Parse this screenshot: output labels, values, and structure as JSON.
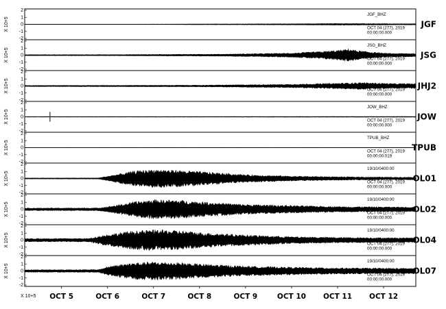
{
  "chart_data": {
    "type": "line",
    "y_scale_label": "X 10+5",
    "x_scale_label": "X 10+5",
    "x_ticks": [
      "OCT 5",
      "OCT 6",
      "OCT 7",
      "OCT 8",
      "OCT 9",
      "OCT 10",
      "OCT 11",
      "OCT 12"
    ],
    "y_ticks": [
      "-2",
      "-1",
      "0",
      "1",
      "2"
    ],
    "ylim": [
      -2,
      2
    ],
    "panels": [
      {
        "station": "JGF",
        "component": "JGF_BHZ",
        "date": "OCT 04 (277), 2019",
        "time": "00:00:00.000",
        "note": "",
        "envelope": [
          [
            0,
            0.02
          ],
          [
            6.5,
            0.02
          ],
          [
            8,
            0.05
          ],
          [
            10,
            0.08
          ],
          [
            11,
            0.12
          ],
          [
            12,
            0.1
          ],
          [
            12.2,
            0.08
          ]
        ]
      },
      {
        "station": "JSG",
        "component": "JSG_BHZ",
        "date": "OCT 04 (277), 2019",
        "time": "00:00:00.000",
        "note": "",
        "envelope": [
          [
            0,
            0.06
          ],
          [
            6,
            0.08
          ],
          [
            8.5,
            0.15
          ],
          [
            10,
            0.3
          ],
          [
            10.7,
            0.55
          ],
          [
            11.1,
            0.75
          ],
          [
            11.25,
            0.9
          ],
          [
            11.5,
            0.6
          ],
          [
            12,
            0.3
          ],
          [
            12.2,
            0.25
          ]
        ]
      },
      {
        "station": "JHJ2",
        "component": "",
        "date": "OCT 04 (277), 2019",
        "time": "00:00:00.000",
        "note": "",
        "envelope": [
          [
            0,
            0.05
          ],
          [
            4,
            0.08
          ],
          [
            6,
            0.1
          ],
          [
            8,
            0.12
          ],
          [
            10,
            0.25
          ],
          [
            11,
            0.4
          ],
          [
            11.5,
            0.5
          ],
          [
            12,
            0.4
          ],
          [
            12.2,
            0.35
          ]
        ]
      },
      {
        "station": "JOW",
        "component": "JOW_BHZ",
        "date": "OCT 04 (277), 2019",
        "time": "00:00:00.000",
        "note": "",
        "envelope": [
          [
            0,
            0.03
          ],
          [
            8,
            0.04
          ],
          [
            12.2,
            0.05
          ]
        ],
        "spikes": [
          [
            4.75,
            0.7
          ]
        ]
      },
      {
        "station": "TPUB",
        "component": "TPUB_BHZ",
        "date": "OCT 04 (277), 2019",
        "time": "00:00:00.019",
        "note": "",
        "envelope": [
          [
            0,
            0.01
          ],
          [
            12.2,
            0.02
          ]
        ]
      },
      {
        "station": "OL01",
        "component": "",
        "date": "OCT 04 (277), 2019",
        "time": "00:00:00.000",
        "note": "19/10/0400:00",
        "envelope": [
          [
            0,
            0.05
          ],
          [
            5.8,
            0.08
          ],
          [
            6.2,
            0.6
          ],
          [
            6.6,
            1.1
          ],
          [
            7,
            1.3
          ],
          [
            7.5,
            1.2
          ],
          [
            8,
            1.0
          ],
          [
            9,
            0.55
          ],
          [
            10,
            0.35
          ],
          [
            11,
            0.25
          ],
          [
            12.2,
            0.2
          ]
        ]
      },
      {
        "station": "OL02",
        "component": "",
        "date": "OCT 04 (277), 2019",
        "time": "00:00:00.000",
        "note": "19/10/0400:00",
        "envelope": [
          [
            0,
            0.15
          ],
          [
            5.8,
            0.2
          ],
          [
            6.2,
            0.6
          ],
          [
            6.6,
            1.1
          ],
          [
            7,
            1.4
          ],
          [
            7.6,
            1.3
          ],
          [
            8,
            1.1
          ],
          [
            9,
            0.7
          ],
          [
            10,
            0.55
          ],
          [
            11,
            0.4
          ],
          [
            12.2,
            0.35
          ]
        ]
      },
      {
        "station": "OL04",
        "component": "",
        "date": "OCT 04 (277), 2019",
        "time": "00:00:00.000",
        "note": "19/10/0400:00",
        "envelope": [
          [
            0,
            0.2
          ],
          [
            5.6,
            0.25
          ],
          [
            5.9,
            0.7
          ],
          [
            6.5,
            1.3
          ],
          [
            7,
            1.5
          ],
          [
            7.6,
            1.35
          ],
          [
            8,
            1.1
          ],
          [
            9,
            0.75
          ],
          [
            10,
            0.5
          ],
          [
            11,
            0.4
          ],
          [
            12.2,
            0.35
          ]
        ]
      },
      {
        "station": "OL07",
        "component": "",
        "date": "OCT 04 (277), 2019",
        "time": "00:00:00.000",
        "note": "19/10/0400:00",
        "envelope": [
          [
            0,
            0.15
          ],
          [
            5.8,
            0.2
          ],
          [
            6.1,
            0.8
          ],
          [
            6.6,
            1.2
          ],
          [
            7,
            1.3
          ],
          [
            7.6,
            1.2
          ],
          [
            8,
            1.0
          ],
          [
            9,
            0.7
          ],
          [
            10,
            0.55
          ],
          [
            11,
            0.45
          ],
          [
            12.2,
            0.4
          ]
        ]
      }
    ],
    "xlim": [
      4.2,
      12.7
    ],
    "grid": false,
    "legend": "none"
  }
}
